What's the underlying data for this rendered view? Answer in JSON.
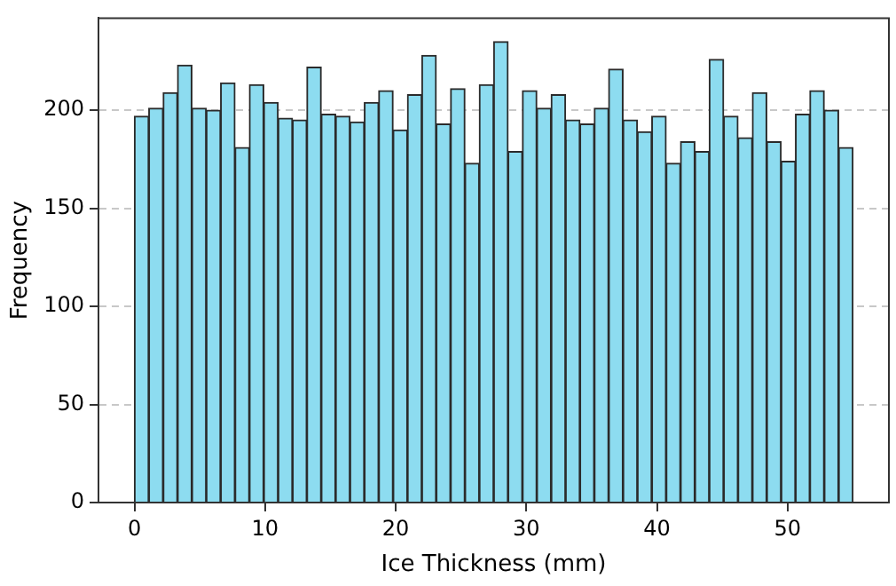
{
  "chart_data": {
    "type": "histogram",
    "xlabel": "Ice Thickness (mm)",
    "ylabel": "Frequency",
    "bins": [
      0,
      1.1,
      2.2,
      3.3,
      4.4,
      5.5,
      6.6,
      7.7,
      8.8,
      9.9,
      11,
      12.1,
      13.2,
      14.3,
      15.4,
      16.5,
      17.6,
      18.7,
      19.8,
      20.9,
      22,
      23.1,
      24.2,
      25.3,
      26.4,
      27.5,
      28.6,
      29.7,
      30.8,
      31.9,
      33,
      34.1,
      35.2,
      36.3,
      37.4,
      38.5,
      39.6,
      40.7,
      41.8,
      42.9,
      44,
      45.1,
      46.2,
      47.3,
      48.4,
      49.5,
      50.6,
      51.7,
      52.8,
      53.9,
      55
    ],
    "values": [
      197,
      201,
      209,
      223,
      201,
      200,
      214,
      181,
      213,
      204,
      196,
      195,
      222,
      198,
      197,
      194,
      204,
      210,
      190,
      208,
      228,
      193,
      211,
      173,
      213,
      235,
      179,
      210,
      201,
      208,
      195,
      193,
      201,
      221,
      195,
      189,
      197,
      173,
      184,
      179,
      226,
      197,
      186,
      209,
      184,
      174,
      198,
      210,
      200,
      181
    ],
    "color": "#8ddcf0",
    "xlim": [
      -2.75,
      57.75
    ],
    "ylim": [
      0,
      247
    ],
    "xticks": [
      0,
      10,
      20,
      30,
      40,
      50
    ],
    "yticks": [
      0,
      50,
      100,
      150,
      200
    ],
    "grid": "y"
  }
}
